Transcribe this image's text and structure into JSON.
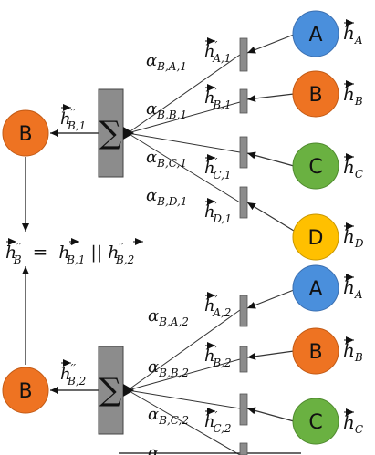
{
  "diagram": {
    "colors": {
      "A": "#4a8fdc",
      "B": "#ee7322",
      "C": "#6ab141",
      "D": "#ffc000",
      "aggregator": "#8c8c8c",
      "bar": "#8c8c8c"
    },
    "top": {
      "target_node": "B",
      "sum_symbol": "∑",
      "output_label": {
        "base": "h",
        "sup": "′′",
        "sub": "B,1"
      },
      "neighbors": [
        {
          "node": "A",
          "h_label": {
            "base": "h",
            "sub": "A"
          },
          "hp_label": {
            "base": "h",
            "sup": "′",
            "sub": "A,1"
          },
          "alpha": {
            "base": "α",
            "sub": "B,A,1"
          }
        },
        {
          "node": "B",
          "h_label": {
            "base": "h",
            "sub": "B"
          },
          "hp_label": {
            "base": "h",
            "sup": "′",
            "sub": "B,1"
          },
          "alpha": {
            "base": "α",
            "sub": "B,B,1"
          }
        },
        {
          "node": "C",
          "h_label": {
            "base": "h",
            "sub": "C"
          },
          "hp_label": {
            "base": "h",
            "sup": "′",
            "sub": "C,1"
          },
          "alpha": {
            "base": "α",
            "sub": "B,C,1"
          }
        },
        {
          "node": "D",
          "h_label": {
            "base": "h",
            "sub": "D"
          },
          "hp_label": {
            "base": "h",
            "sup": "′",
            "sub": "D,1"
          },
          "alpha": {
            "base": "α",
            "sub": "B,D,1"
          }
        }
      ]
    },
    "bottom": {
      "target_node": "B",
      "sum_symbol": "∑",
      "output_label": {
        "base": "h",
        "sup": "′′",
        "sub": "B,2"
      },
      "neighbors": [
        {
          "node": "A",
          "h_label": {
            "base": "h",
            "sub": "A"
          },
          "hp_label": {
            "base": "h",
            "sup": "′",
            "sub": "A,2"
          },
          "alpha": {
            "base": "α",
            "sub": "B,A,2"
          }
        },
        {
          "node": "B",
          "h_label": {
            "base": "h",
            "sub": "B"
          },
          "hp_label": {
            "base": "h",
            "sup": "′",
            "sub": "B,2"
          },
          "alpha": {
            "base": "α",
            "sub": "B,B,2"
          }
        },
        {
          "node": "C",
          "h_label": {
            "base": "h",
            "sub": "C"
          },
          "hp_label": {
            "base": "h",
            "sup": "′",
            "sub": "C,2"
          },
          "alpha": {
            "base": "α",
            "sub": "B,C,2"
          }
        },
        {
          "node": "",
          "h_label": null,
          "hp_label": null,
          "alpha": {
            "base": "α",
            "sub": ""
          }
        }
      ]
    },
    "equation": {
      "lhs": {
        "base": "h",
        "sup": "′′",
        "sub": "B"
      },
      "equals": "=",
      "rhs1": {
        "base": "h",
        "sup": "′′",
        "sub": "B,1"
      },
      "concat": "||",
      "rhs2": {
        "base": "h",
        "sup": "′′",
        "sub": "B,2"
      }
    }
  }
}
